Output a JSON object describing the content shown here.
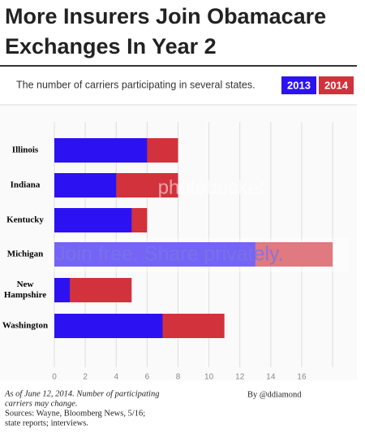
{
  "chart_data": {
    "type": "bar",
    "orientation": "horizontal",
    "overlap": true,
    "title": [
      "More Insurers Join Obamacare",
      "Exchanges In Year 2"
    ],
    "subtitle": "The number of carriers participating in several states.",
    "categories": [
      "Illinois",
      "Indiana",
      "Kentucky",
      "Michigan",
      "New Hampshire",
      "Washington"
    ],
    "series": [
      {
        "name": "2014",
        "color": "#d2323c",
        "values": [
          8,
          8,
          6,
          18,
          5,
          11
        ]
      },
      {
        "name": "2013",
        "color": "#2c12f2",
        "values": [
          6,
          4,
          5,
          13,
          1,
          7
        ]
      }
    ],
    "xlim": [
      0,
      19
    ],
    "xticks": [
      0,
      2,
      4,
      6,
      8,
      10,
      12,
      14,
      16
    ],
    "grid": true,
    "byline": "By @ddiamond",
    "notes": [
      "As of June 12, 2014. Number of participating",
      "carriers may change.",
      "Sources: Wayne, Bloomberg News, 5/16;",
      "state reports; interviews."
    ],
    "watermark": [
      "photobucket",
      "Join free. Share privately."
    ]
  }
}
